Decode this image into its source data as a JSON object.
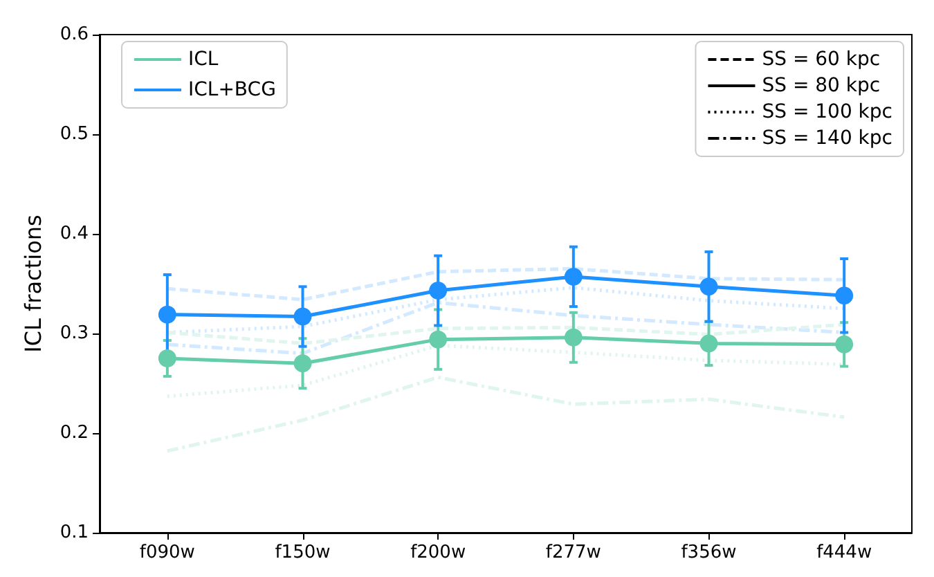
{
  "chart_data": {
    "type": "line",
    "ylabel": "ICL fractions",
    "categories": [
      "f090w",
      "f150w",
      "f200w",
      "f277w",
      "f356w",
      "f444w"
    ],
    "ylim": [
      0.1,
      0.6
    ],
    "yticks": [
      0.1,
      0.2,
      0.3,
      0.4,
      0.5,
      0.6
    ],
    "grid": false,
    "legend": "top left",
    "series": [
      {
        "name": "ICL",
        "color": "#66cdaa",
        "line_style": "solid",
        "marker": "circle",
        "values": [
          0.275,
          0.27,
          0.294,
          0.296,
          0.29,
          0.289
        ],
        "errors": [
          0.018,
          0.025,
          0.03,
          0.025,
          0.022,
          0.022
        ]
      },
      {
        "name": "ICL+BCG",
        "color": "#1e90ff",
        "line_style": "solid",
        "marker": "circle",
        "values": [
          0.319,
          0.317,
          0.343,
          0.357,
          0.347,
          0.338
        ],
        "errors": [
          0.04,
          0.03,
          0.035,
          0.03,
          0.035,
          0.037
        ]
      },
      {
        "color": "#d2e9ff",
        "line_style": "dashed",
        "marker": "none",
        "values": [
          0.345,
          0.334,
          0.362,
          0.365,
          0.355,
          0.354
        ]
      },
      {
        "color": "#d2e9ff",
        "line_style": "dotted",
        "marker": "none",
        "values": [
          0.301,
          0.307,
          0.334,
          0.346,
          0.333,
          0.325
        ]
      },
      {
        "color": "#d2e9ff",
        "line_style": "dashdot",
        "marker": "none",
        "values": [
          0.289,
          0.28,
          0.331,
          0.318,
          0.309,
          0.301
        ]
      },
      {
        "color": "#e0f5ee",
        "line_style": "dashed",
        "marker": "none",
        "values": [
          0.301,
          0.29,
          0.305,
          0.306,
          0.299,
          0.309
        ]
      },
      {
        "color": "#e0f5ee",
        "line_style": "dotted",
        "marker": "none",
        "values": [
          0.237,
          0.248,
          0.288,
          0.281,
          0.273,
          0.269
        ]
      },
      {
        "color": "#e0f5ee",
        "line_style": "dashdot",
        "marker": "none",
        "values": [
          0.182,
          0.213,
          0.256,
          0.229,
          0.234,
          0.216
        ]
      },
      {
        "name": "SS = 60 kpc",
        "color": "#000000",
        "line_style": "dashed",
        "marker": "none",
        "values": [
          null,
          null,
          null,
          null,
          null,
          null
        ]
      },
      {
        "name": "SS = 80 kpc",
        "color": "#000000",
        "line_style": "solid",
        "marker": "none",
        "values": [
          null,
          null,
          null,
          null,
          null,
          null
        ]
      },
      {
        "name": "SS = 100 kpc",
        "color": "#000000",
        "line_style": "dotted",
        "marker": "none",
        "values": [
          null,
          null,
          null,
          null,
          null,
          null
        ]
      },
      {
        "name": "SS = 140 kpc",
        "color": "#000000",
        "line_style": "dashdot",
        "marker": "none",
        "values": [
          null,
          null,
          null,
          null,
          null,
          null
        ]
      }
    ]
  }
}
